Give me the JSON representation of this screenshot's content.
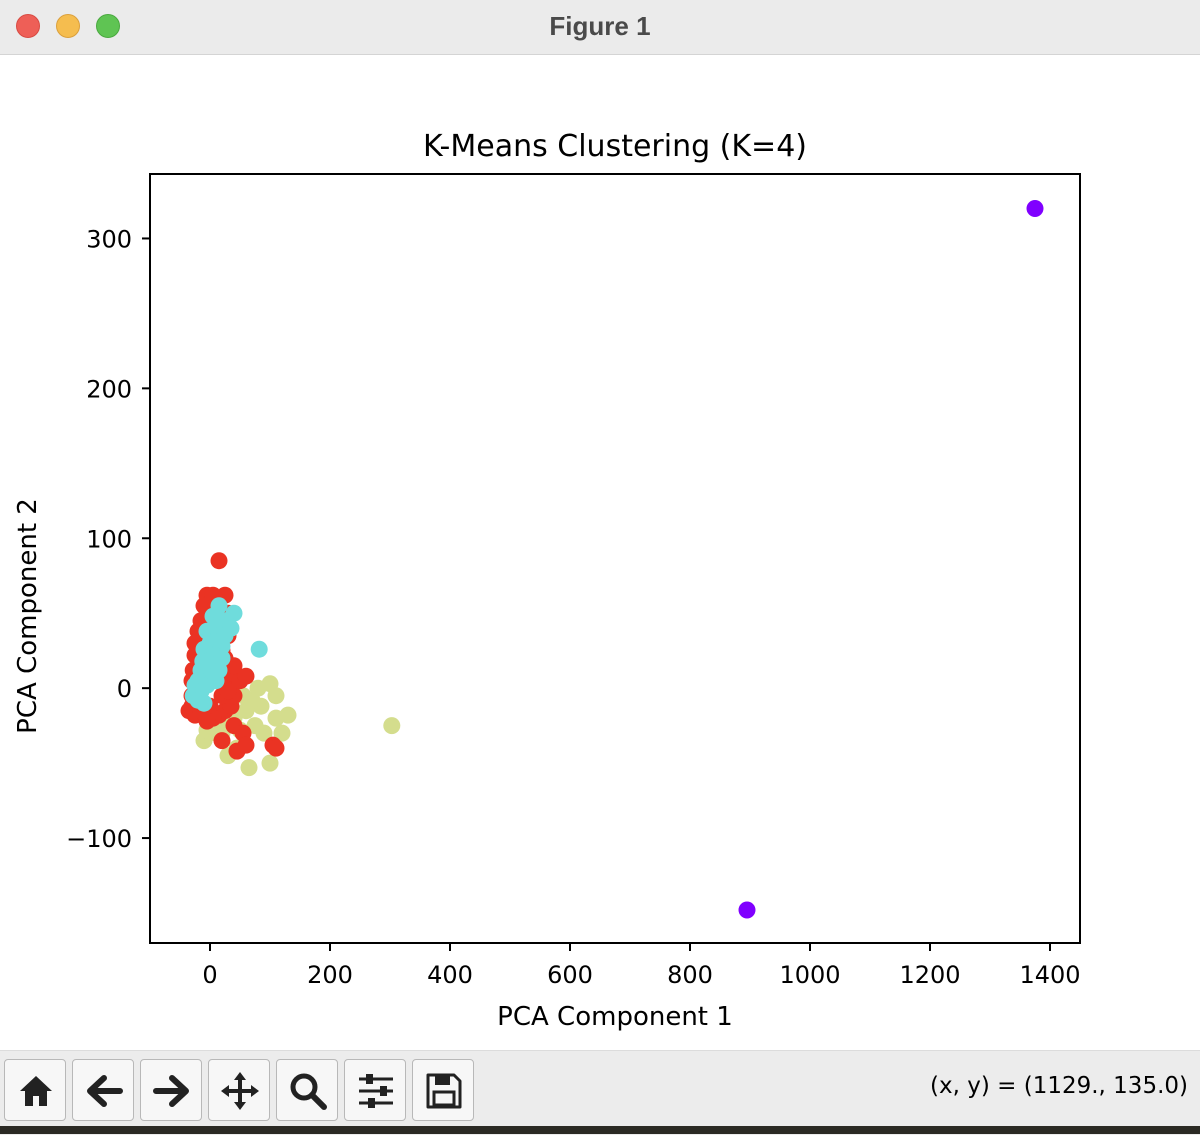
{
  "window": {
    "title": "Figure 1"
  },
  "toolbar": {
    "buttons": [
      {
        "name": "home-button",
        "icon": "home-icon"
      },
      {
        "name": "back-button",
        "icon": "arrow-left-icon"
      },
      {
        "name": "forward-button",
        "icon": "arrow-right-icon"
      },
      {
        "name": "pan-button",
        "icon": "move-icon"
      },
      {
        "name": "zoom-button",
        "icon": "magnifier-icon"
      },
      {
        "name": "configure-subplots-button",
        "icon": "sliders-icon"
      },
      {
        "name": "save-button",
        "icon": "floppy-disk-icon"
      }
    ],
    "coords": "(x, y) = (1129., 135.0)"
  },
  "chart_data": {
    "type": "scatter",
    "title": "K-Means Clustering (K=4)",
    "xlabel": "PCA Component 1",
    "ylabel": "PCA Component 2",
    "xlim": [
      -100,
      1450
    ],
    "ylim": [
      -170,
      343
    ],
    "xticks": [
      0,
      200,
      400,
      600,
      800,
      1000,
      1200,
      1400
    ],
    "xtick_labels": [
      "0",
      "200",
      "400",
      "600",
      "800",
      "1000",
      "1200",
      "1400"
    ],
    "yticks": [
      -100,
      0,
      100,
      200,
      300
    ],
    "ytick_labels": [
      "−100",
      "0",
      "100",
      "200",
      "300"
    ],
    "grid": false,
    "series": [
      {
        "name": "cluster-0",
        "color": "#8000ff",
        "points": [
          [
            1375,
            320
          ],
          [
            895,
            -148
          ]
        ]
      },
      {
        "name": "cluster-1",
        "color": "#d4dd8d",
        "points": [
          [
            303,
            -25
          ],
          [
            80,
            0
          ],
          [
            100,
            3
          ],
          [
            110,
            -5
          ],
          [
            130,
            -18
          ],
          [
            85,
            -12
          ],
          [
            70,
            -8
          ],
          [
            120,
            -30
          ],
          [
            100,
            -50
          ],
          [
            65,
            -53
          ],
          [
            50,
            -28
          ],
          [
            40,
            -20
          ],
          [
            60,
            -15
          ],
          [
            30,
            -12
          ],
          [
            20,
            -30
          ],
          [
            -10,
            -35
          ],
          [
            -5,
            -28
          ],
          [
            10,
            -30
          ],
          [
            30,
            -45
          ],
          [
            45,
            -40
          ],
          [
            75,
            -25
          ],
          [
            90,
            -30
          ],
          [
            110,
            -20
          ],
          [
            55,
            -5
          ],
          [
            35,
            -5
          ],
          [
            20,
            -20
          ]
        ]
      },
      {
        "name": "cluster-2",
        "color": "#ea3323",
        "points": [
          [
            15,
            85
          ],
          [
            -5,
            62
          ],
          [
            5,
            62
          ],
          [
            25,
            62
          ],
          [
            -10,
            55
          ],
          [
            10,
            55
          ],
          [
            30,
            50
          ],
          [
            -15,
            45
          ],
          [
            0,
            45
          ],
          [
            20,
            45
          ],
          [
            -20,
            38
          ],
          [
            -5,
            38
          ],
          [
            15,
            38
          ],
          [
            30,
            35
          ],
          [
            -25,
            30
          ],
          [
            -10,
            30
          ],
          [
            5,
            30
          ],
          [
            -25,
            22
          ],
          [
            -10,
            20
          ],
          [
            -28,
            12
          ],
          [
            -15,
            12
          ],
          [
            -30,
            5
          ],
          [
            -20,
            0
          ],
          [
            -30,
            -5
          ],
          [
            -30,
            -12
          ],
          [
            -35,
            -15
          ],
          [
            -25,
            -18
          ],
          [
            -15,
            -15
          ],
          [
            0,
            -12
          ],
          [
            15,
            -18
          ],
          [
            25,
            -15
          ],
          [
            35,
            -12
          ],
          [
            40,
            -5
          ],
          [
            20,
            -5
          ],
          [
            30,
            0
          ],
          [
            25,
            8
          ],
          [
            35,
            10
          ],
          [
            50,
            5
          ],
          [
            40,
            15
          ],
          [
            25,
            20
          ],
          [
            20,
            25
          ],
          [
            60,
            8
          ],
          [
            40,
            -25
          ],
          [
            55,
            -30
          ],
          [
            45,
            -42
          ],
          [
            20,
            -35
          ],
          [
            60,
            -38
          ],
          [
            105,
            -38
          ],
          [
            110,
            -40
          ],
          [
            30,
            -2
          ],
          [
            15,
            10
          ],
          [
            5,
            -20
          ],
          [
            -5,
            -22
          ]
        ]
      },
      {
        "name": "cluster-3",
        "color": "#6fdcdc",
        "points": [
          [
            82,
            26
          ],
          [
            40,
            50
          ],
          [
            15,
            55
          ],
          [
            5,
            48
          ],
          [
            25,
            45
          ],
          [
            10,
            42
          ],
          [
            35,
            40
          ],
          [
            -5,
            38
          ],
          [
            15,
            35
          ],
          [
            0,
            30
          ],
          [
            20,
            28
          ],
          [
            -10,
            26
          ],
          [
            8,
            22
          ],
          [
            -12,
            18
          ],
          [
            5,
            15
          ],
          [
            -15,
            12
          ],
          [
            2,
            8
          ],
          [
            -20,
            5
          ],
          [
            -5,
            2
          ],
          [
            -25,
            2
          ],
          [
            -15,
            -2
          ],
          [
            -28,
            -5
          ],
          [
            -20,
            -8
          ],
          [
            -10,
            -10
          ],
          [
            10,
            5
          ],
          [
            15,
            12
          ],
          [
            -5,
            18
          ],
          [
            20,
            20
          ],
          [
            25,
            35
          ]
        ]
      }
    ]
  }
}
